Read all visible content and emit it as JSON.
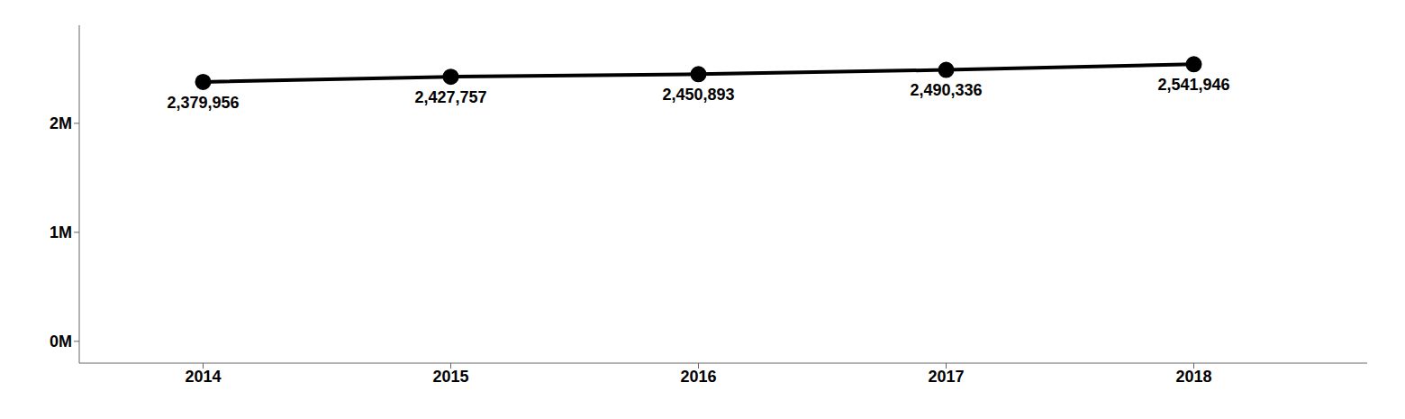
{
  "chart_data": {
    "type": "line",
    "x": [
      2014,
      2015,
      2016,
      2017,
      2018
    ],
    "values": [
      2379956,
      2427757,
      2450893,
      2490336,
      2541946
    ],
    "value_labels": [
      "2,379,956",
      "2,427,757",
      "2,450,893",
      "2,490,336",
      "2,541,946"
    ],
    "data_labels": true,
    "color": "#000000",
    "marker": "circle",
    "xlim": [
      2013.5,
      2018.7
    ],
    "xticks": [
      2014,
      2015,
      2016,
      2017,
      2018
    ],
    "ylim": [
      -200000,
      2900000
    ],
    "yticks": [
      {
        "value": 0,
        "label": "0M"
      },
      {
        "value": 1000000,
        "label": "1M"
      },
      {
        "value": 2000000,
        "label": "2M"
      }
    ],
    "grid": false
  }
}
